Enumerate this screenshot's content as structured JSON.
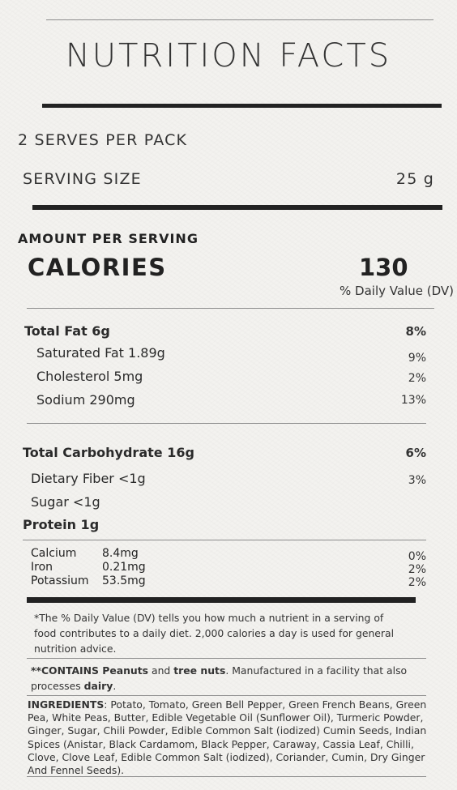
{
  "title": "NUTRITION FACTS",
  "serves_per_pack": "2 SERVES PER PACK",
  "serving_size": {
    "label": "SERVING SIZE",
    "value": "25 g"
  },
  "amount_per_serving": "AMOUNT PER SERVING",
  "calories": {
    "label": "CALORIES",
    "value": "130"
  },
  "dv_header": "% Daily Value (DV)",
  "nutrients_fat": {
    "main": {
      "label": "Total Fat 6g",
      "dv": "8%"
    },
    "sub": [
      {
        "label": "Saturated Fat 1.89g",
        "dv": "9%"
      },
      {
        "label": "Cholesterol 5mg",
        "dv": "2%"
      },
      {
        "label": "Sodium 290mg",
        "dv": "13%"
      }
    ]
  },
  "nutrients_carb": {
    "main": {
      "label": "Total Carbohydrate 16g",
      "dv": "6%"
    },
    "fiber": {
      "label": "Dietary Fiber <1g",
      "dv": "3%"
    },
    "sugar": {
      "label": "Sugar <1g"
    },
    "protein": {
      "label": "Protein 1g"
    }
  },
  "minerals": [
    {
      "name": "Calcium",
      "amount": "8.4mg",
      "dv": "0%"
    },
    {
      "name": "Iron",
      "amount": "0.21mg",
      "dv": "2%"
    },
    {
      "name": "Potassium",
      "amount": "53.5mg",
      "dv": "2%"
    }
  ],
  "footnote": "*The % Daily Value (DV) tells you how much a nutrient in a serving of food contributes to a daily diet. 2,000 calories a day is used for general nutrition advice.",
  "allergen": {
    "prefix": "**CONTAINS Peanuts",
    "and": " and ",
    "nuts": "tree nuts",
    "middle": ". Manufactured in a facility that also processes ",
    "dairy": "dairy",
    "end": "."
  },
  "ingredients": {
    "label": "INGREDIENTS",
    "text": ": Potato, Tomato, Green Bell Pepper, Green French Beans, Green Pea, White Peas, Butter, Edible Vegetable Oil (Sunflower Oil), Turmeric Powder, Ginger, Sugar, Chili Powder, Edible Common Salt (iodized) Cumin Seeds, Indian Spices (Anistar, Black Cardamom, Black Pepper, Caraway, Cassia Leaf, Chilli, Clove, Clove Leaf, Edible Common Salt (iodized), Coriander, Cumin, Dry Ginger And Fennel Seeds)."
  }
}
